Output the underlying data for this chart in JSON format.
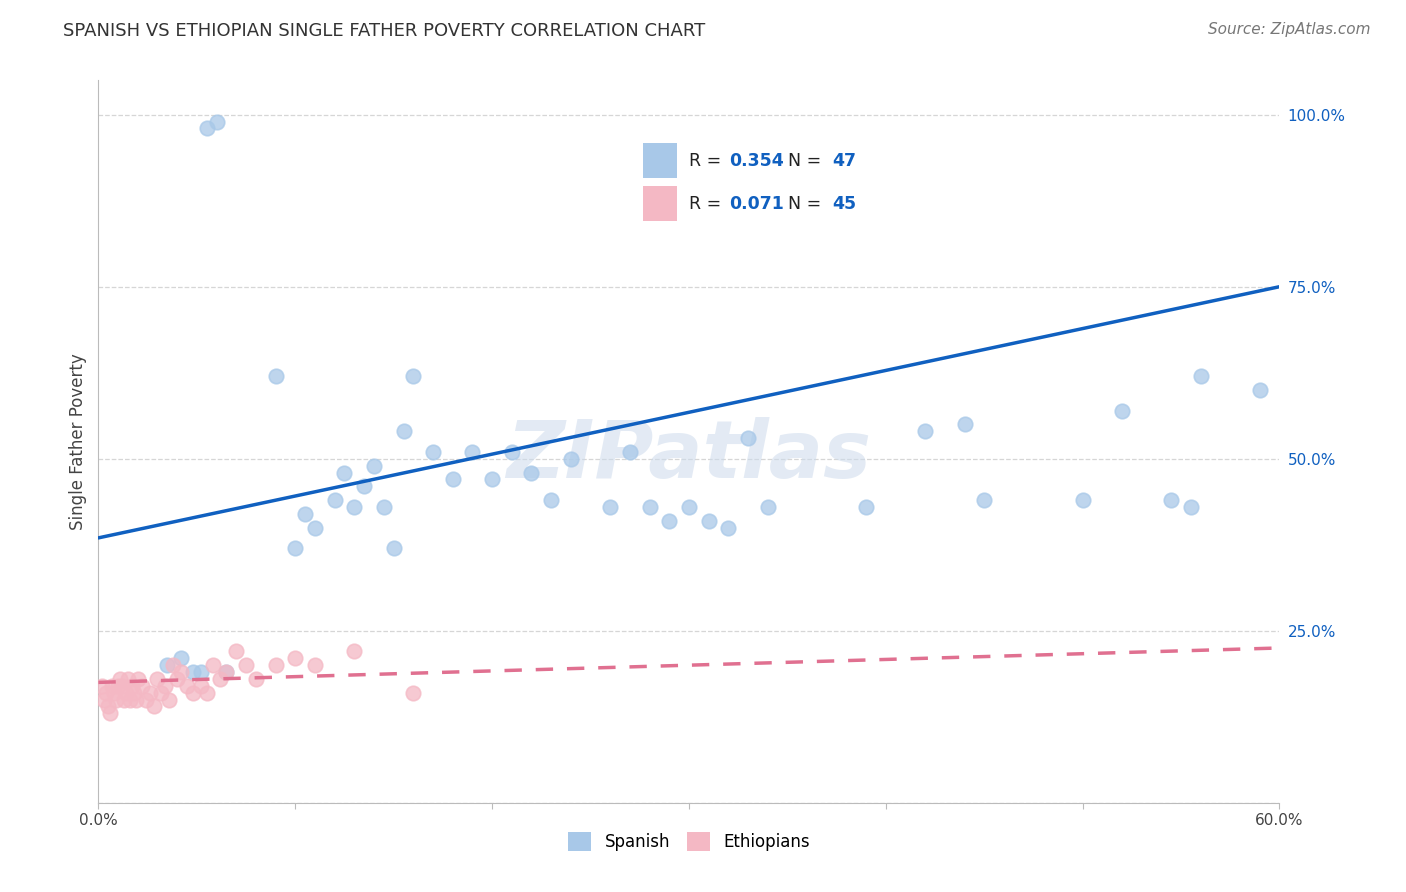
{
  "title": "SPANISH VS ETHIOPIAN SINGLE FATHER POVERTY CORRELATION CHART",
  "source": "Source: ZipAtlas.com",
  "ylabel": "Single Father Poverty",
  "xlim": [
    0.0,
    0.6
  ],
  "ylim": [
    0.0,
    1.05
  ],
  "ytick_positions": [
    0.0,
    0.25,
    0.5,
    0.75,
    1.0
  ],
  "yticklabels": [
    "",
    "25.0%",
    "50.0%",
    "75.0%",
    "100.0%"
  ],
  "spanish_color": "#a8c8e8",
  "ethiopian_color": "#f4b8c4",
  "trend_spanish_color": "#1060c0",
  "trend_ethiopian_color": "#e07090",
  "R_spanish": 0.354,
  "N_spanish": 47,
  "R_ethiopian": 0.071,
  "N_ethiopian": 45,
  "watermark": "ZIPatlas",
  "background_color": "#ffffff",
  "grid_color": "#cccccc",
  "spanish_x": [
    0.035,
    0.042,
    0.048,
    0.052,
    0.055,
    0.06,
    0.065,
    0.09,
    0.1,
    0.105,
    0.11,
    0.12,
    0.125,
    0.13,
    0.135,
    0.14,
    0.145,
    0.15,
    0.155,
    0.16,
    0.17,
    0.18,
    0.19,
    0.2,
    0.21,
    0.22,
    0.23,
    0.24,
    0.26,
    0.27,
    0.28,
    0.29,
    0.3,
    0.31,
    0.32,
    0.33,
    0.34,
    0.39,
    0.42,
    0.44,
    0.45,
    0.5,
    0.52,
    0.545,
    0.555,
    0.56,
    0.59
  ],
  "spanish_y": [
    0.2,
    0.21,
    0.19,
    0.19,
    0.98,
    0.99,
    0.19,
    0.62,
    0.37,
    0.42,
    0.4,
    0.44,
    0.48,
    0.43,
    0.46,
    0.49,
    0.43,
    0.37,
    0.54,
    0.62,
    0.51,
    0.47,
    0.51,
    0.47,
    0.51,
    0.48,
    0.44,
    0.5,
    0.43,
    0.51,
    0.43,
    0.41,
    0.43,
    0.41,
    0.4,
    0.53,
    0.43,
    0.43,
    0.54,
    0.55,
    0.44,
    0.44,
    0.57,
    0.44,
    0.43,
    0.62,
    0.6
  ],
  "ethiopian_x": [
    0.002,
    0.003,
    0.004,
    0.005,
    0.006,
    0.007,
    0.008,
    0.009,
    0.01,
    0.011,
    0.012,
    0.013,
    0.014,
    0.015,
    0.016,
    0.017,
    0.018,
    0.019,
    0.02,
    0.022,
    0.024,
    0.026,
    0.028,
    0.03,
    0.032,
    0.034,
    0.036,
    0.038,
    0.04,
    0.042,
    0.045,
    0.048,
    0.052,
    0.055,
    0.058,
    0.062,
    0.065,
    0.07,
    0.075,
    0.08,
    0.09,
    0.1,
    0.11,
    0.13,
    0.16
  ],
  "ethiopian_y": [
    0.17,
    0.15,
    0.16,
    0.14,
    0.13,
    0.17,
    0.16,
    0.15,
    0.17,
    0.18,
    0.17,
    0.15,
    0.16,
    0.18,
    0.15,
    0.17,
    0.16,
    0.15,
    0.18,
    0.17,
    0.15,
    0.16,
    0.14,
    0.18,
    0.16,
    0.17,
    0.15,
    0.2,
    0.18,
    0.19,
    0.17,
    0.16,
    0.17,
    0.16,
    0.2,
    0.18,
    0.19,
    0.22,
    0.2,
    0.18,
    0.2,
    0.21,
    0.2,
    0.22,
    0.16
  ],
  "sp_trend_x0": 0.0,
  "sp_trend_y0": 0.385,
  "sp_trend_x1": 0.6,
  "sp_trend_y1": 0.75,
  "et_trend_x0": 0.0,
  "et_trend_y0": 0.175,
  "et_trend_x1": 0.6,
  "et_trend_y1": 0.225,
  "title_fontsize": 13,
  "source_fontsize": 11,
  "axis_fontsize": 12,
  "tick_fontsize": 11,
  "legend_fontsize": 13
}
